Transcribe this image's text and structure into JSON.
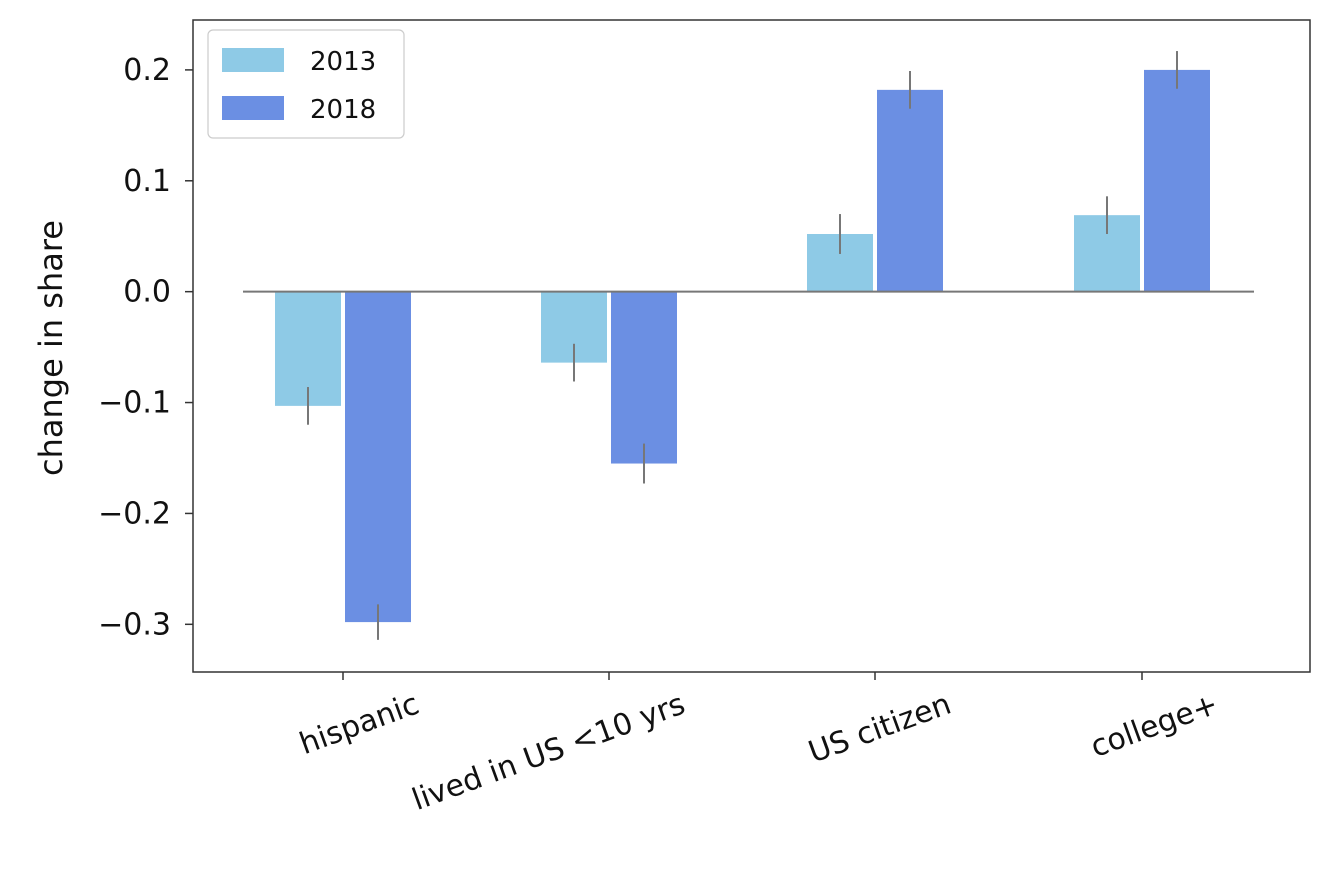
{
  "chart_data": {
    "type": "bar",
    "title": "",
    "xlabel": "",
    "ylabel": "change in share",
    "categories": [
      "hispanic",
      "lived in US <10 yrs",
      "US citizen",
      "college+"
    ],
    "series": [
      {
        "name": "2013",
        "color": "#8ecae6",
        "values": [
          -0.103,
          -0.064,
          0.052,
          0.069
        ],
        "errors": [
          0.017,
          0.017,
          0.018,
          0.017
        ]
      },
      {
        "name": "2018",
        "color": "#6b8fe3",
        "values": [
          -0.298,
          -0.155,
          0.182,
          0.2
        ],
        "errors": [
          0.016,
          0.018,
          0.017,
          0.017
        ]
      }
    ],
    "ylim": [
      -0.343,
      0.245
    ],
    "yticks": [
      -0.3,
      -0.2,
      -0.1,
      0.0,
      0.1,
      0.2
    ],
    "ytick_labels": [
      "−0.3",
      "−0.2",
      "−0.1",
      "0.0",
      "0.1",
      "0.2"
    ],
    "grid": false,
    "legend_position": "top-left",
    "zero_line": true,
    "errorbar_color": "#777777",
    "frame_color": "#333333"
  }
}
